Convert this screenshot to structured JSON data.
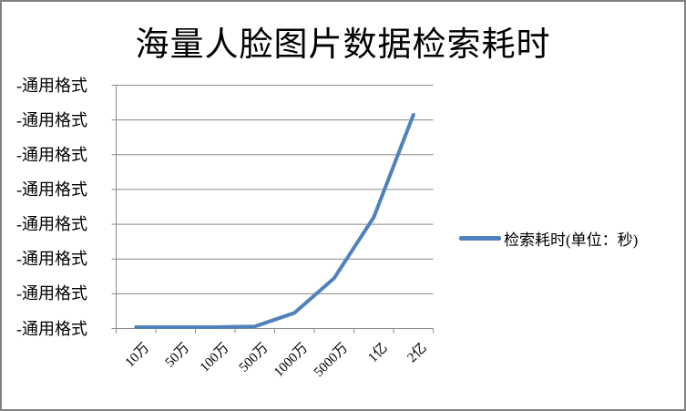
{
  "title": "海量人脸图片数据检索耗时",
  "legend": {
    "label": "检索耗时(单位：秒)"
  },
  "axes": {
    "y_tick_labels": [
      "-通用格式",
      "-通用格式",
      "-通用格式",
      "-通用格式",
      "-通用格式",
      "-通用格式",
      "-通用格式",
      "-通用格式"
    ],
    "x_tick_labels": [
      "10万",
      "50万",
      "100万",
      "500万",
      "1000万",
      "5000万",
      "1亿",
      "2亿"
    ]
  },
  "chart_data": {
    "type": "line",
    "title": "海量人脸图片数据检索耗时",
    "categories": [
      "10万",
      "50万",
      "100万",
      "500万",
      "1000万",
      "5000万",
      "1亿",
      "2亿"
    ],
    "series": [
      {
        "name": "检索耗时(单位：秒)",
        "color": "#4F81BD",
        "values": [
          0.04,
          0.04,
          0.04,
          0.06,
          0.45,
          1.45,
          3.2,
          6.15
        ]
      }
    ],
    "xlabel": "",
    "ylabel": "",
    "ylim": [
      0,
      7
    ],
    "y_gridline_every": 1,
    "y_tick_label_text": "-通用格式",
    "note": "All 8 y-axis tick labels render as the placeholder text '-通用格式' (broken number format), so series values are estimated in gridline units from pixel positions.",
    "grid": true,
    "legend_position": "right"
  },
  "colors": {
    "series": "#4F81BD",
    "gridline": "#8A8A8A",
    "axis": "#8A8A8A",
    "border": "#808080",
    "text": "#000000",
    "background": "#FFFFFF"
  }
}
